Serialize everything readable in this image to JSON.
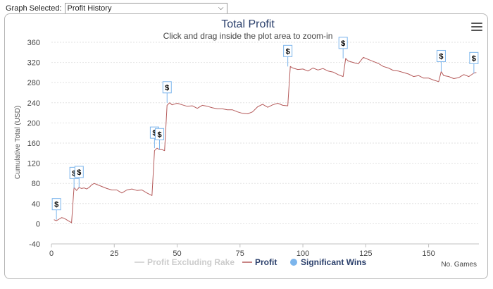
{
  "selector": {
    "label": "Graph Selected:",
    "value": "Profit History"
  },
  "chart_data": {
    "type": "line",
    "title": "Total Profit",
    "subtitle": "Click and drag inside the plot area to zoom-in",
    "xlabel": "No. Games",
    "ylabel": "Cumulative Total (USD)",
    "xlim": [
      0,
      170
    ],
    "ylim": [
      -40,
      360
    ],
    "x_ticks": [
      0,
      25,
      50,
      75,
      100,
      125,
      150
    ],
    "y_ticks": [
      -40,
      0,
      40,
      80,
      120,
      160,
      200,
      240,
      280,
      320,
      360
    ],
    "grid": true,
    "legend_position": "bottom-center",
    "legend": [
      {
        "name": "Profit Excluding Rake",
        "color": "#cccccc",
        "marker": "line"
      },
      {
        "name": "Profit",
        "color": "#b55a5a",
        "marker": "line"
      },
      {
        "name": "Significant Wins",
        "color": "#7cb5ec",
        "marker": "circle"
      }
    ],
    "series": [
      {
        "name": "Profit",
        "color": "#b55a5a",
        "x": [
          1,
          2,
          3,
          4,
          5,
          6,
          7,
          8,
          9,
          10,
          11,
          12,
          13,
          14,
          15,
          16,
          17,
          18,
          20,
          22,
          24,
          26,
          28,
          30,
          32,
          34,
          36,
          38,
          40,
          41,
          42,
          43,
          44,
          45,
          46,
          47,
          48,
          50,
          52,
          54,
          56,
          58,
          60,
          62,
          64,
          66,
          68,
          70,
          72,
          74,
          76,
          78,
          80,
          82,
          84,
          86,
          88,
          90,
          92,
          94,
          95,
          96,
          98,
          100,
          102,
          104,
          106,
          108,
          110,
          112,
          114,
          116,
          117,
          118,
          120,
          122,
          124,
          126,
          128,
          130,
          132,
          134,
          136,
          138,
          140,
          142,
          144,
          146,
          148,
          150,
          152,
          154,
          155,
          156,
          158,
          160,
          162,
          164,
          166,
          168,
          169
        ],
        "y": [
          8,
          6,
          9,
          12,
          11,
          8,
          5,
          2,
          72,
          66,
          72,
          70,
          71,
          69,
          72,
          77,
          80,
          78,
          74,
          70,
          67,
          67,
          61,
          67,
          69,
          66,
          67,
          61,
          56,
          145,
          150,
          147,
          147,
          145,
          235,
          240,
          236,
          239,
          236,
          233,
          234,
          229,
          235,
          233,
          230,
          228,
          228,
          226,
          226,
          222,
          219,
          218,
          222,
          232,
          237,
          231,
          236,
          239,
          235,
          234,
          312,
          309,
          306,
          307,
          303,
          309,
          305,
          308,
          303,
          301,
          296,
          292,
          328,
          323,
          320,
          317,
          330,
          326,
          322,
          318,
          312,
          309,
          304,
          303,
          300,
          297,
          292,
          294,
          289,
          289,
          285,
          282,
          302,
          294,
          292,
          288,
          290,
          296,
          292,
          299,
          300
        ]
      }
    ],
    "significant_wins": {
      "name": "Significant Wins",
      "marker_label": "$",
      "x": [
        2,
        9,
        11,
        41,
        43,
        46,
        94,
        116,
        155,
        168
      ],
      "y": [
        8,
        70,
        72,
        150,
        147,
        240,
        312,
        328,
        302,
        298
      ]
    }
  }
}
